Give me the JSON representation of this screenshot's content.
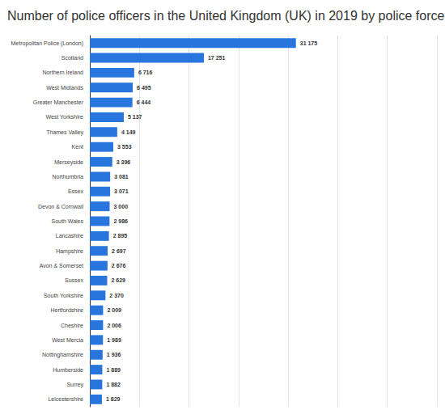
{
  "chart_data": {
    "type": "bar",
    "orientation": "horizontal",
    "title": "Number of police officers in the United Kingdom (UK) in 2019 by police force",
    "categories": [
      "Metropolitan Police (London)",
      "Scotland",
      "Northern Ireland",
      "West Midlands",
      "Greater Manchester",
      "West Yorkshire",
      "Thames Valley",
      "Kent",
      "Merseyside",
      "Northumbria",
      "Essex",
      "Devon & Cornwall",
      "South Wales",
      "Lancashire",
      "Hampshire",
      "Avon & Somerset",
      "Sussex",
      "South Yorkshire",
      "Hertfordshire",
      "Cheshire",
      "West Mercia",
      "Nottinghamshire",
      "Humberside",
      "Surrey",
      "Leicestershire"
    ],
    "values": [
      31175,
      17251,
      6716,
      6495,
      6444,
      5137,
      4149,
      3553,
      3396,
      3081,
      3071,
      3000,
      2986,
      2895,
      2697,
      2676,
      2629,
      2370,
      2009,
      2006,
      1989,
      1936,
      1889,
      1882,
      1829
    ],
    "value_labels": [
      "31 175",
      "17 251",
      "6 716",
      "6 495",
      "6 444",
      "5 137",
      "4 149",
      "3 553",
      "3 396",
      "3 081",
      "3 071",
      "3 000",
      "2 986",
      "2 895",
      "2 697",
      "2 676",
      "2 629",
      "2 370",
      "2 009",
      "2 006",
      "1 989",
      "1 936",
      "1 889",
      "1 882",
      "1 829"
    ],
    "color": "#2876dd",
    "xlim": [
      0,
      52500
    ],
    "xticks": [
      0,
      7500,
      15000,
      22500,
      30000,
      37500,
      45000,
      52500
    ],
    "grid": true,
    "data_labels": true,
    "tick_labels": "y"
  }
}
